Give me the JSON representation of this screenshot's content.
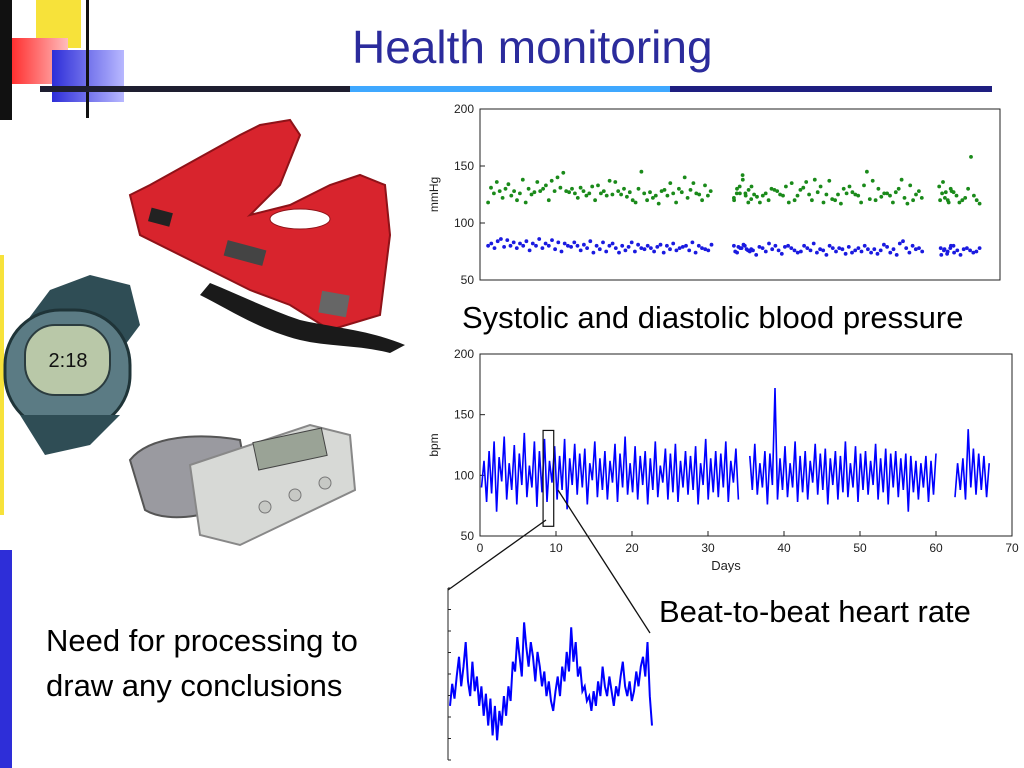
{
  "slide": {
    "title": "Health monitoring",
    "note_line1": "Need for processing to",
    "note_line2": "draw any conclusions",
    "caption_bp": "Systolic and diastolic blood pressure",
    "caption_hr": "Beat-to-beat heart rate"
  },
  "colors": {
    "title": "#2b2b9c",
    "systolic": "#1a8a1a",
    "diastolic": "#1a1ae0",
    "heart_rate": "#0000ff",
    "rule_dark": "#1e1e80",
    "rule_light": "#3fa0ff"
  },
  "chart_data": [
    {
      "type": "scatter",
      "ylabel": "mmHg",
      "ylim": [
        50,
        200
      ],
      "yticks": [
        "200",
        "150",
        "100",
        "50"
      ],
      "series": [
        {
          "values": [
            118,
            131,
            126,
            136,
            128,
            122,
            130,
            134,
            124,
            128,
            120,
            126,
            138,
            118,
            130,
            125,
            127,
            136,
            128,
            130,
            133,
            120,
            137,
            128,
            140,
            131,
            144,
            128,
            127,
            130,
            126,
            122,
            131,
            128,
            124,
            126,
            132,
            120,
            133,
            126,
            128,
            124,
            137,
            125,
            136,
            128,
            125,
            130,
            123,
            127,
            120,
            118,
            130,
            145,
            126,
            120,
            127,
            122,
            124,
            117,
            128,
            129,
            124,
            135,
            126,
            118,
            130,
            127,
            140,
            122,
            129,
            135,
            126,
            125,
            120,
            133,
            124,
            128,
            120,
            130,
            126,
            138,
            124,
            129,
            132,
            122,
            126,
            132,
            142,
            126,
            118,
            121,
            125,
            123,
            118,
            124,
            126,
            120,
            130,
            129,
            128,
            125,
            124,
            132,
            118,
            135,
            120,
            124,
            129,
            131,
            136,
            125,
            120,
            138,
            127,
            132,
            118,
            125,
            137,
            121,
            120,
            125,
            117,
            130,
            126,
            132,
            127,
            125,
            124,
            118,
            133,
            145,
            121,
            137,
            120,
            130,
            123,
            126,
            126,
            124,
            118,
            127,
            130,
            138,
            122,
            117,
            133,
            120,
            125,
            128,
            122,
            120,
            136,
            127,
            118,
            128,
            132,
            126,
            122,
            120,
            130,
            127,
            124,
            118,
            120,
            122,
            130,
            158,
            124,
            120,
            117
          ]
        },
        {
          "values": [
            80,
            82,
            78,
            84,
            86,
            79,
            85,
            80,
            83,
            78,
            82,
            80,
            84,
            76,
            82,
            80,
            86,
            78,
            82,
            80,
            85,
            77,
            83,
            75,
            82,
            80,
            79,
            83,
            80,
            76,
            81,
            78,
            84,
            74,
            80,
            77,
            83,
            75,
            80,
            82,
            78,
            74,
            80,
            76,
            79,
            83,
            75,
            81,
            78,
            77,
            80,
            78,
            75,
            79,
            81,
            74,
            80,
            77,
            82,
            76,
            78,
            79,
            80,
            76,
            83,
            74,
            80,
            78,
            77,
            76,
            81,
            75,
            79,
            78,
            80,
            76,
            77,
            80,
            74,
            78,
            81,
            77,
            75,
            76,
            72,
            79,
            78,
            75,
            82,
            77,
            80,
            76,
            73,
            79,
            80,
            78,
            76,
            74,
            75,
            80,
            78,
            76,
            82,
            74,
            77,
            76,
            72,
            80,
            78,
            75,
            78,
            77,
            73,
            79,
            74,
            76,
            78,
            75,
            80,
            77,
            74,
            77,
            73,
            76,
            81,
            79,
            74,
            77,
            72,
            82,
            84,
            78,
            74,
            80,
            77,
            78,
            75,
            78,
            76,
            73,
            78,
            80,
            72,
            77,
            75,
            80,
            74,
            76,
            72,
            77,
            78,
            76,
            74,
            75,
            78
          ]
        }
      ]
    },
    {
      "type": "line",
      "xlabel": "Days",
      "ylabel": "bpm",
      "xlim": [
        0,
        70
      ],
      "ylim": [
        50,
        200
      ],
      "xticks": [
        "0",
        "10",
        "20",
        "30",
        "40",
        "50",
        "60",
        "70"
      ],
      "yticks": [
        "200",
        "150",
        "100",
        "50"
      ],
      "series": [
        {
          "values": [
            90,
            112,
            78,
            120,
            85,
            128,
            70,
            115,
            95,
            132,
            80,
            110,
            88,
            125,
            76,
            118,
            92,
            135,
            82,
            108,
            90,
            128,
            74,
            120,
            86,
            130,
            78,
            112,
            94,
            124,
            80,
            116,
            88,
            130,
            72,
            114,
            92,
            126,
            84,
            118,
            90,
            122,
            76,
            110,
            96,
            128,
            82,
            114,
            88,
            120,
            80,
            112,
            94,
            126,
            78,
            118,
            90,
            132,
            84,
            110,
            86,
            124,
            80,
            116,
            92,
            120,
            76,
            114,
            88,
            128,
            82,
            108,
            94,
            122,
            80,
            118,
            86,
            126,
            78,
            112,
            90,
            120,
            84,
            116,
            88,
            124,
            76,
            110,
            92,
            130,
            80,
            114,
            86,
            120,
            82,
            118,
            90,
            128,
            78,
            112,
            94,
            122,
            80,
            116,
            88,
            126,
            84,
            110,
            90,
            120,
            76,
            118,
            92,
            172,
            80,
            114,
            88,
            124,
            82,
            110,
            90,
            128,
            78,
            116,
            86,
            120,
            80,
            112,
            94,
            126,
            84,
            118,
            88,
            122,
            76,
            114,
            92,
            120,
            80,
            116,
            86,
            128,
            82,
            110,
            90,
            124,
            78,
            118,
            88,
            120,
            84,
            112,
            92,
            126,
            80,
            114,
            86,
            122,
            76,
            118,
            90,
            120,
            82,
            114,
            88,
            118,
            70,
            116,
            86,
            112,
            80,
            110,
            90,
            116,
            78,
            112,
            84,
            118,
            82,
            110,
            88,
            114,
            80,
            138,
            90,
            122,
            84,
            118,
            88,
            116,
            82,
            110
          ]
        }
      ]
    },
    {
      "type": "line",
      "series": [
        {
          "values": [
            92,
            101,
            95,
            104,
            112,
            100,
            108,
            118,
            102,
            96,
            110,
            98,
            104,
            92,
            100,
            88,
            97,
            84,
            95,
            80,
            92,
            78,
            90,
            84,
            96,
            88,
            100,
            94,
            110,
            106,
            120,
            112,
            104,
            126,
            116,
            108,
            118,
            112,
            102,
            114,
            108,
            100,
            106,
            96,
            102,
            94,
            90,
            98,
            104,
            96,
            108,
            102,
            114,
            106,
            124,
            110,
            118,
            104,
            108,
            98,
            100,
            94,
            96,
            90,
            98,
            92,
            102,
            96,
            108,
            100,
            96,
            104,
            98,
            92,
            100,
            96,
            104,
            110,
            100,
            96,
            102,
            94,
            98,
            106,
            100,
            108,
            112,
            104,
            118,
            96,
            84
          ]
        }
      ]
    }
  ]
}
